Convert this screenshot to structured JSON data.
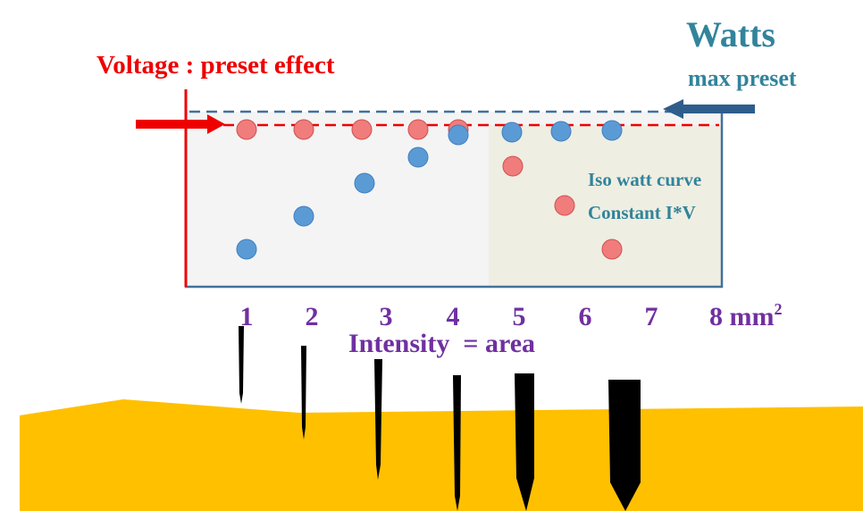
{
  "title": "Voltage : preset effect",
  "watts": {
    "title": "Watts",
    "subtitle": "max preset"
  },
  "annotation": {
    "line1": "Iso watt curve",
    "line2": "Constant I*V"
  },
  "axis": {
    "labels": [
      "1",
      "2",
      "3",
      "4",
      "5",
      "6",
      "7"
    ],
    "last_label": "8 mm",
    "last_label_superscript": "2",
    "title": "Intensity  = area"
  }
}
